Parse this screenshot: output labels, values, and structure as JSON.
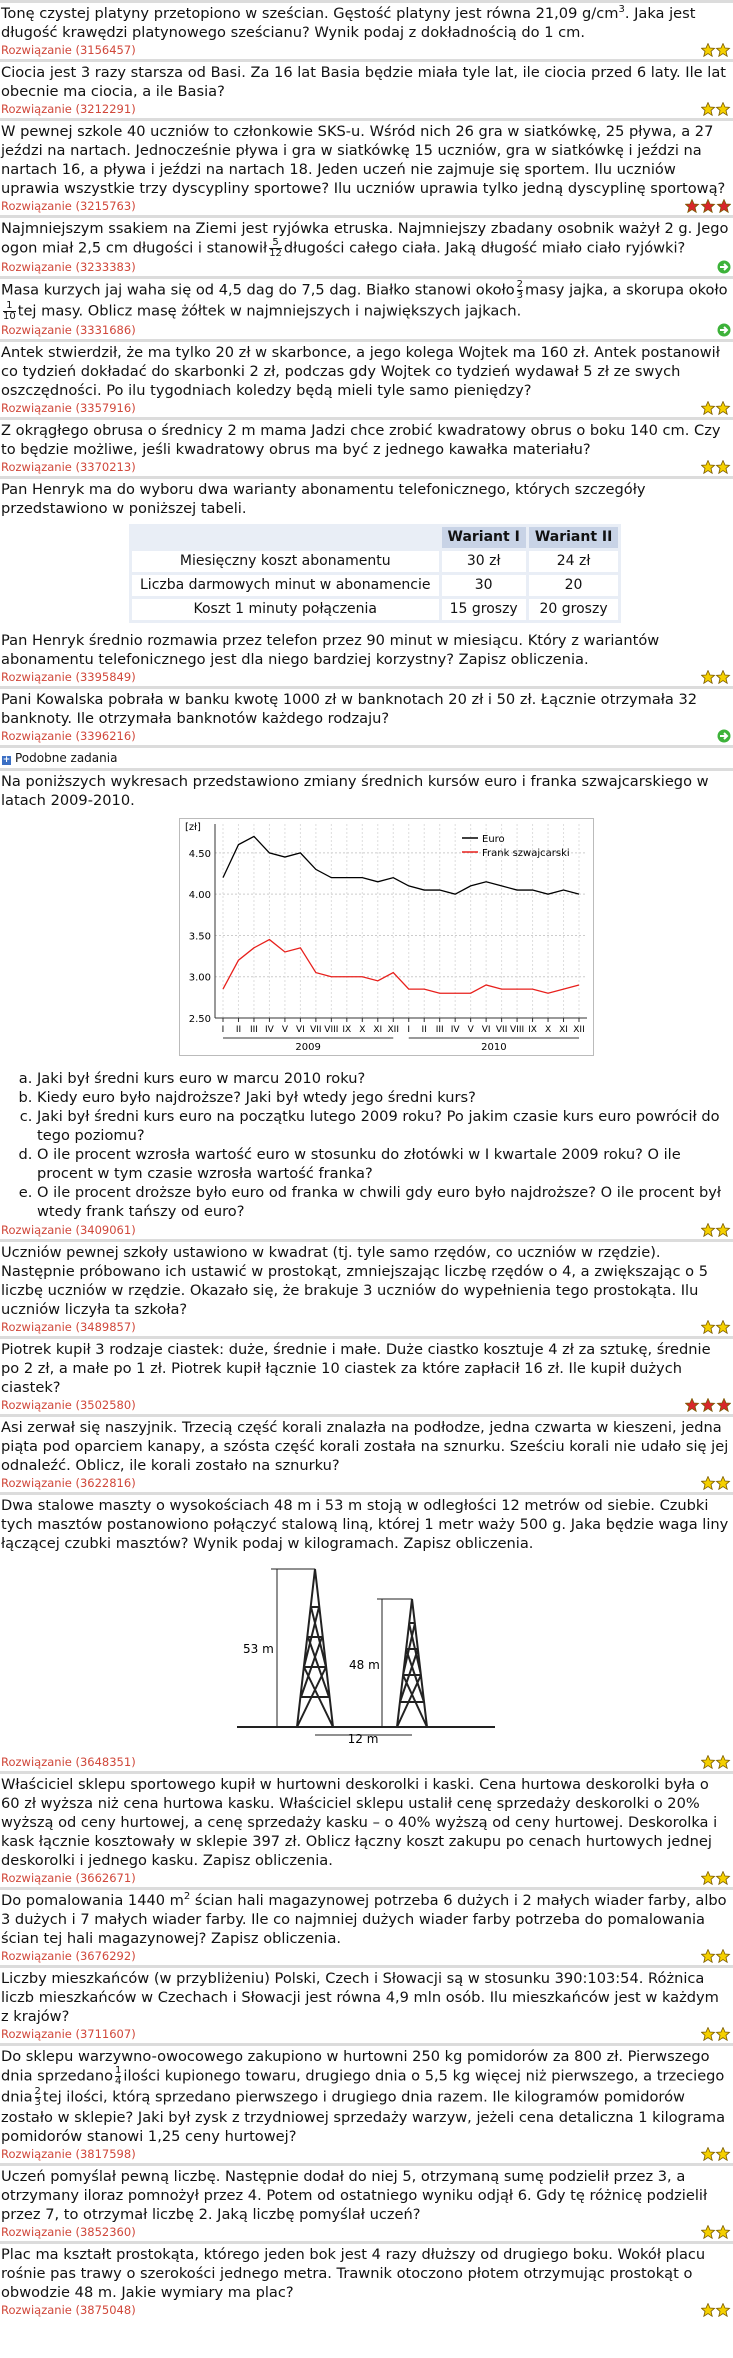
{
  "problems": [
    {
      "text": [
        "Tonę czystej platyny przetopiono w sześcian. Gęstość platyny jest równa 21,09 g/cm",
        {
          "sup": "3"
        },
        ". Jaka jest długość krawędzi platynowego sześcianu? Wynik podaj z dokładnością do 1 cm."
      ],
      "solution": "Rozwiązanie (3156457)"
    },
    {
      "text": [
        "Ciocia jest 3 razy starsza od Basi. Za 16 lat Basia będzie miała tyle lat, ile ciocia przed 6 laty. Ile lat obecnie ma ciocia, a ile Basia?"
      ],
      "solution": "Rozwiązanie (3212291)"
    },
    {
      "text": [
        "W pewnej szkole 40 uczniów to członkowie SKS-u. Wśród nich 26 gra w siatkówkę, 25 pływa, a 27 jeździ na nartach. Jednocześnie pływa i gra w siatkówkę 15 uczniów, gra w siatkówkę i jeździ na nartach 16, a pływa i jeździ na nartach 18. Jeden uczeń nie zajmuje się sportem. Ilu uczniów uprawia wszystkie trzy dyscypliny sportowe? Ilu uczniów uprawia tylko jedną dyscyplinę sportową?"
      ],
      "solution": "Rozwiązanie (3215763)"
    },
    {
      "text": [
        "Najmniejszym ssakiem na Ziemi jest ryjówka etruska. Najmniejszy zbadany osobnik ważył 2 g. Jego ogon miał 2,5 cm długości i stanowił",
        {
          "frac": [
            "5",
            "12"
          ]
        },
        "długości całego ciała. Jaką długość miało ciało ryjówki?"
      ],
      "solution": "Rozwiązanie (3233383)"
    },
    {
      "text": [
        "Masa kurzych jaj waha się od 4,5 dag do 7,5 dag. Białko stanowi około",
        {
          "frac": [
            "2",
            "3"
          ]
        },
        "masy jajka, a skorupa około",
        {
          "frac": [
            "1",
            "10"
          ]
        },
        "tej masy. Oblicz masę żółtek w najmniejszych i największych jajkach."
      ],
      "solution": "Rozwiązanie (3331686)"
    },
    {
      "text": [
        "Antek stwierdził, że ma tylko 20 zł w skarbonce, a jego kolega Wojtek ma 160 zł. Antek postanowił co tydzień dokładać do skarbonki 2 zł, podczas gdy Wojtek co tydzień wydawał 5 zł ze swych oszczędności. Po ilu tygodniach koledzy będą mieli tyle samo pieniędzy?"
      ],
      "solution": "Rozwiązanie (3357916)"
    },
    {
      "text": [
        "Z okrągłego obrusa o średnicy 2 m mama Jadzi chce zrobić kwadratowy obrus o boku 140 cm. Czy to będzie możliwe, jeśli kwadratowy obrus ma być z jednego kawałka materiału?"
      ],
      "solution": "Rozwiązanie (3370213)"
    },
    {
      "text": [
        "Pan Henryk ma do wyboru dwa warianty abonamentu telefonicznego, których szczegóły przedstawiono w poniższej tabeli."
      ],
      "table": {
        "header": [
          "Wariant I",
          "Wariant II"
        ],
        "rows": [
          [
            "Miesięczny koszt abonamentu",
            "30 zł",
            "24 zł"
          ],
          [
            "Liczba darmowych minut w abonamencie",
            "30",
            "20"
          ],
          [
            "Koszt 1 minuty połączenia",
            "15 groszy",
            "20 groszy"
          ]
        ]
      },
      "text2": [
        "Pan Henryk średnio rozmawia przez telefon przez 90 minut w miesiącu. Który z wariantów abonamentu telefonicznego jest dla niego bardziej korzystny? Zapisz obliczenia."
      ],
      "solution": "Rozwiązanie (3395849)"
    },
    {
      "text": [
        "Pani Kowalska pobrała w banku kwotę 1000 zł w banknotach 20 zł i 50 zł. Łącznie otrzymała 32 banknoty. Ile otrzymała banknotów każdego rodzaju?"
      ],
      "solution": "Rozwiązanie (3396216)"
    },
    {
      "text": [
        "Na poniższych wykresach przedstawiono zmiany średnich kursów euro i franka szwajcarskiego w latach 2009-2010."
      ],
      "questions": [
        "Jaki był średni kurs euro w marcu 2010 roku?",
        "Kiedy euro było najdroższe? Jaki był wtedy jego średni kurs?",
        "Jaki był średni kurs euro na początku lutego 2009 roku? Po jakim czasie kurs euro powrócił do tego poziomu?",
        "O ile procent wzrosła wartość euro w stosunku do złotówki w I kwartale 2009 roku? O ile procent w tym czasie wzrosła wartość franka?",
        "O ile procent droższe było euro od franka w chwili gdy euro było najdroższe? O ile procent był wtedy frank tańszy od euro?"
      ],
      "solution": "Rozwiązanie (3409061)"
    },
    {
      "text": [
        "Uczniów pewnej szkoły ustawiono w kwadrat (tj. tyle samo rzędów, co uczniów w rzędzie). Następnie próbowano ich ustawić w prostokąt, zmniejszając liczbę rzędów o 4, a zwiększając o 5 liczbę uczniów w rzędzie. Okazało się, że brakuje 3 uczniów do wypełnienia tego prostokąta. Ilu uczniów liczyła ta szkoła?"
      ],
      "solution": "Rozwiązanie (3489857)"
    },
    {
      "text": [
        "Piotrek kupił 3 rodzaje ciastek: duże, średnie i małe. Duże ciastko kosztuje 4 zł za sztukę, średnie po 2 zł, a małe po 1 zł. Piotrek kupił łącznie 10 ciastek za które zapłacił 16 zł. Ile kupił dużych ciastek?"
      ],
      "solution": "Rozwiązanie (3502580)"
    },
    {
      "text": [
        "Asi zerwał się naszyjnik. Trzecią część korali znalazła na podłodze, jedna czwarta w kieszeni, jedna piąta pod oparciem kanapy, a szósta część korali została na sznurku. Sześciu korali nie udało się jej odnaleźć. Oblicz, ile korali zostało na sznurku?"
      ],
      "solution": "Rozwiązanie (3622816)"
    },
    {
      "text": [
        "Dwa stalowe maszty o wysokościach 48 m i 53 m stoją w odległości 12 metrów od siebie. Czubki tych masztów postanowiono połączyć stalową liną, której 1 metr waży 500 g. Jaka będzie waga liny łączącej czubki masztów? Wynik podaj w kilogramach. Zapisz obliczenia."
      ],
      "figure": [
        "53 m",
        "48 m",
        "12 m"
      ],
      "solution": "Rozwiązanie (3648351)"
    },
    {
      "text": [
        "Właściciel sklepu sportowego kupił w hurtowni deskorolki i kaski. Cena hurtowa deskorolki była o 60 zł wyższa niż cena hurtowa kasku. Właściciel sklepu ustalił cenę sprzedaży deskorolki o 20% wyższą od ceny hurtowej, a cenę sprzedaży kasku – o 40% wyższą od ceny hurtowej. Deskorolka i kask łącznie kosztowały w sklepie 397 zł. Oblicz łączny koszt zakupu po cenach hurtowych jednej deskorolki i jednego kasku. Zapisz obliczenia."
      ],
      "solution": "Rozwiązanie (3662671)"
    },
    {
      "text": [
        "Do pomalowania 1440 m",
        {
          "sup": "2"
        },
        " ścian hali magazynowej potrzeba 6 dużych i 2 małych wiader farby, albo 3 dużych i 7 małych wiader farby. Ile co najmniej dużych wiader farby potrzeba do pomalowania ścian tej hali magazynowej? Zapisz obliczenia."
      ],
      "solution": "Rozwiązanie (3676292)"
    },
    {
      "text": [
        "Liczby mieszkańców (w przybliżeniu) Polski, Czech i Słowacji są w stosunku 390:103:54. Różnica liczb mieszkańców w Czechach i Słowacji jest równa 4,9 mln osób. Ilu mieszkańców jest w każdym z krajów?"
      ],
      "solution": "Rozwiązanie (3711607)"
    },
    {
      "text": [
        "Do sklepu warzywno-owocowego zakupiono w hurtowni 250 kg pomidorów za 800 zł. Pierwszego dnia sprzedano",
        {
          "frac": [
            "1",
            "4"
          ]
        },
        "ilości kupionego towaru, drugiego dnia o 5,5 kg więcej niż pierwszego, a trzeciego dnia",
        {
          "frac": [
            "2",
            "3"
          ]
        },
        "tej ilości, którą sprzedano pierwszego i drugiego dnia razem. Ile kilogramów pomidorów zostało w sklepie? Jaki był zysk z trzydniowej sprzedaży warzyw, jeżeli cena detaliczna 1 kilograma pomidorów stanowi 1,25 ceny hurtowej?"
      ],
      "solution": "Rozwiązanie (3817598)"
    },
    {
      "text": [
        "Uczeń pomyślał pewną liczbę. Następnie dodał do niej 5, otrzymaną sumę podzielił przez 3, a otrzymany iloraz pomnożył przez 4. Potem od ostatniego wyniku odjął 6. Gdy tę różnicę podzielił przez 7, to otrzymał liczbę 2. Jaką liczbę pomyślał uczeń?"
      ],
      "solution": "Rozwiązanie (3852360)"
    },
    {
      "text": [
        "Plac ma kształt prostokąta, którego jeden bok jest 4 razy dłuższy od drugiego boku. Wokół placu rośnie pas trawy o szerokości jednego metra. Trawnik otoczono płotem otrzymując prostokąt o obwodzie 48 m. Jakie wymiary ma plac?"
      ],
      "solution": "Rozwiązanie (3875048)"
    }
  ],
  "similar": "Podobne zadania",
  "chart_data": {
    "type": "line",
    "y_unit": "[zł]",
    "categories": [
      "I",
      "II",
      "III",
      "IV",
      "V",
      "VI",
      "VII",
      "VIII",
      "IX",
      "X",
      "XI",
      "XII",
      "I",
      "II",
      "III",
      "IV",
      "V",
      "VI",
      "VII",
      "VIII",
      "IX",
      "X",
      "XI",
      "XII"
    ],
    "years": [
      "2009",
      "2010"
    ],
    "series": [
      {
        "name": "Euro",
        "color": "#000000",
        "values": [
          4.2,
          4.6,
          4.7,
          4.5,
          4.45,
          4.5,
          4.3,
          4.2,
          4.2,
          4.2,
          4.15,
          4.2,
          4.1,
          4.05,
          4.05,
          4.0,
          4.1,
          4.15,
          4.1,
          4.05,
          4.05,
          4.0,
          4.05,
          4.0
        ]
      },
      {
        "name": "Frank szwajcarski",
        "color": "#e8201c",
        "values": [
          2.85,
          3.2,
          3.35,
          3.45,
          3.3,
          3.35,
          3.05,
          3.0,
          3.0,
          3.0,
          2.95,
          3.05,
          2.85,
          2.85,
          2.8,
          2.8,
          2.8,
          2.9,
          2.85,
          2.85,
          2.85,
          2.8,
          2.85,
          2.9
        ]
      }
    ],
    "ylim": [
      2.5,
      4.85
    ],
    "yticks": [
      {
        "value": 2.5,
        "label": "2.50"
      },
      {
        "value": 3,
        "label": "3.00"
      },
      {
        "value": 3.5,
        "label": "3.50"
      },
      {
        "value": 4,
        "label": "4.00"
      },
      {
        "value": 4.5,
        "label": "4.50"
      }
    ],
    "grid": true,
    "legend": "top-right"
  }
}
